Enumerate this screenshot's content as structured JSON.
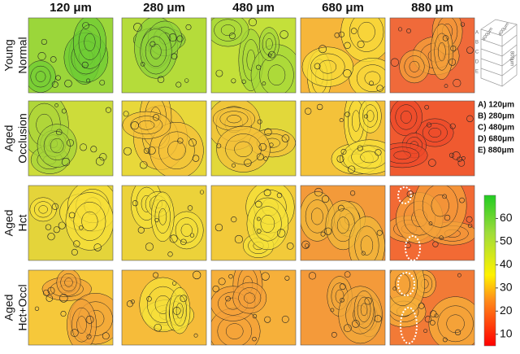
{
  "columns": [
    "120 μm",
    "280 μm",
    "480 μm",
    "680 μm",
    "880 μm"
  ],
  "rows": [
    [
      "Young",
      "Normal"
    ],
    [
      "Aged",
      "Occlusion"
    ],
    [
      "Aged",
      "Hct"
    ],
    [
      "Aged",
      "Hct+Occl"
    ]
  ],
  "cube": {
    "labels": [
      "400μm",
      "400μm",
      "800μm"
    ],
    "letters": [
      "A",
      "B",
      "C",
      "D",
      "E"
    ]
  },
  "legend": [
    "A) 120μm",
    "B) 280μm",
    "C) 480μm",
    "D) 680μm",
    "E) 880μm"
  ],
  "colorbar": {
    "lim": [
      5,
      70
    ],
    "ticks": [
      10,
      20,
      30,
      40,
      50,
      60
    ]
  }
}
